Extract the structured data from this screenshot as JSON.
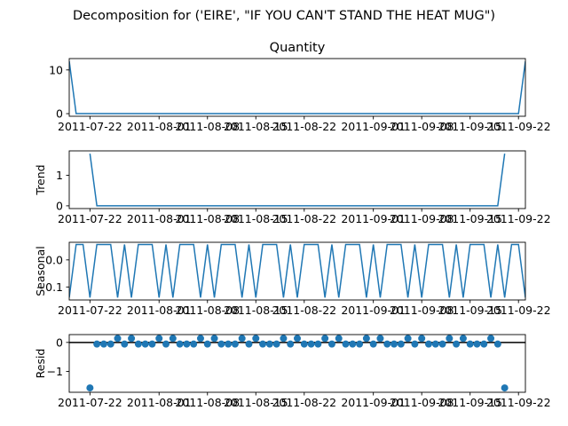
{
  "chart_data": {
    "type": "line",
    "suptitle": "Decomposition for ('EIRE', \"IF YOU CAN'T STAND THE HEAT MUG\")",
    "dates": [
      "2011-07-19",
      "2011-07-20",
      "2011-07-21",
      "2011-07-22",
      "2011-07-23",
      "2011-07-24",
      "2011-07-25",
      "2011-07-26",
      "2011-07-27",
      "2011-07-28",
      "2011-07-29",
      "2011-07-30",
      "2011-07-31",
      "2011-08-01",
      "2011-08-02",
      "2011-08-03",
      "2011-08-04",
      "2011-08-05",
      "2011-08-06",
      "2011-08-07",
      "2011-08-08",
      "2011-08-09",
      "2011-08-10",
      "2011-08-11",
      "2011-08-12",
      "2011-08-13",
      "2011-08-14",
      "2011-08-15",
      "2011-08-16",
      "2011-08-17",
      "2011-08-18",
      "2011-08-19",
      "2011-08-20",
      "2011-08-21",
      "2011-08-22",
      "2011-08-23",
      "2011-08-24",
      "2011-08-25",
      "2011-08-26",
      "2011-08-27",
      "2011-08-28",
      "2011-08-29",
      "2011-08-30",
      "2011-08-31",
      "2011-09-01",
      "2011-09-02",
      "2011-09-03",
      "2011-09-04",
      "2011-09-05",
      "2011-09-06",
      "2011-09-07",
      "2011-09-08",
      "2011-09-09",
      "2011-09-10",
      "2011-09-11",
      "2011-09-12",
      "2011-09-13",
      "2011-09-14",
      "2011-09-15",
      "2011-09-16",
      "2011-09-17",
      "2011-09-18",
      "2011-09-19",
      "2011-09-20",
      "2011-09-21",
      "2011-09-22",
      "2011-09-23"
    ],
    "x_tick_labels": [
      "2011-07-22",
      "2011-08-01",
      "2011-08-08",
      "2011-08-15",
      "2011-08-22",
      "2011-09-01",
      "2011-09-08",
      "2011-09-15",
      "2011-09-22"
    ],
    "panels": [
      {
        "name": "observed",
        "title": "Quantity",
        "ylabel": "",
        "kind": "line",
        "ylim": [
          -0.6,
          12.6
        ],
        "yticks": [
          0,
          10
        ],
        "values": [
          12,
          0,
          0,
          0,
          0,
          0,
          0,
          0,
          0,
          0,
          0,
          0,
          0,
          0,
          0,
          0,
          0,
          0,
          0,
          0,
          0,
          0,
          0,
          0,
          0,
          0,
          0,
          0,
          0,
          0,
          0,
          0,
          0,
          0,
          0,
          0,
          0,
          0,
          0,
          0,
          0,
          0,
          0,
          0,
          0,
          0,
          0,
          0,
          0,
          0,
          0,
          0,
          0,
          0,
          0,
          0,
          0,
          0,
          0,
          0,
          0,
          0,
          0,
          0,
          0,
          0,
          12
        ]
      },
      {
        "name": "trend",
        "title": "",
        "ylabel": "Trend",
        "kind": "line",
        "ylim": [
          -0.09,
          1.8
        ],
        "yticks": [
          0,
          1
        ],
        "values": [
          null,
          null,
          null,
          1.71,
          0,
          0,
          0,
          0,
          0,
          0,
          0,
          0,
          0,
          0,
          0,
          0,
          0,
          0,
          0,
          0,
          0,
          0,
          0,
          0,
          0,
          0,
          0,
          0,
          0,
          0,
          0,
          0,
          0,
          0,
          0,
          0,
          0,
          0,
          0,
          0,
          0,
          0,
          0,
          0,
          0,
          0,
          0,
          0,
          0,
          0,
          0,
          0,
          0,
          0,
          0,
          0,
          0,
          0,
          0,
          0,
          0,
          0,
          0,
          1.71,
          null,
          null,
          null
        ]
      },
      {
        "name": "seasonal",
        "title": "",
        "ylabel": "Seasonal",
        "kind": "line",
        "ylim": [
          -0.148,
          0.065
        ],
        "yticks": [
          0.0,
          -0.1
        ],
        "ytick_labels": [
          "0.0",
          "−0.1"
        ],
        "values": [
          -0.139,
          0.057,
          0.057,
          -0.139,
          0.057,
          0.057,
          0.057,
          -0.139,
          0.057,
          -0.139,
          0.057,
          0.057,
          0.057,
          -0.139,
          0.057,
          -0.139,
          0.057,
          0.057,
          0.057,
          -0.139,
          0.057,
          -0.139,
          0.057,
          0.057,
          0.057,
          -0.139,
          0.057,
          -0.139,
          0.057,
          0.057,
          0.057,
          -0.139,
          0.057,
          -0.139,
          0.057,
          0.057,
          0.057,
          -0.139,
          0.057,
          -0.139,
          0.057,
          0.057,
          0.057,
          -0.139,
          0.057,
          -0.139,
          0.057,
          0.057,
          0.057,
          -0.139,
          0.057,
          -0.139,
          0.057,
          0.057,
          0.057,
          -0.139,
          0.057,
          -0.139,
          0.057,
          0.057,
          0.057,
          -0.139,
          0.057,
          -0.139,
          0.057,
          0.057,
          -0.139
        ]
      },
      {
        "name": "resid",
        "title": "",
        "ylabel": "Resid",
        "kind": "scatter",
        "ylim": [
          -1.72,
          0.27
        ],
        "yticks": [
          0,
          -1
        ],
        "ytick_labels": [
          "0",
          "−1"
        ],
        "baseline": 0,
        "values": [
          null,
          null,
          null,
          -1.57,
          -0.057,
          -0.057,
          -0.057,
          0.139,
          -0.057,
          0.139,
          -0.057,
          -0.057,
          -0.057,
          0.139,
          -0.057,
          0.139,
          -0.057,
          -0.057,
          -0.057,
          0.139,
          -0.057,
          0.139,
          -0.057,
          -0.057,
          -0.057,
          0.139,
          -0.057,
          0.139,
          -0.057,
          -0.057,
          -0.057,
          0.139,
          -0.057,
          0.139,
          -0.057,
          -0.057,
          -0.057,
          0.139,
          -0.057,
          0.139,
          -0.057,
          -0.057,
          -0.057,
          0.139,
          -0.057,
          0.139,
          -0.057,
          -0.057,
          -0.057,
          0.139,
          -0.057,
          0.139,
          -0.057,
          -0.057,
          -0.057,
          0.139,
          -0.057,
          0.139,
          -0.057,
          -0.057,
          -0.057,
          0.139,
          -0.057,
          -1.57,
          null,
          null,
          null
        ]
      }
    ],
    "grid": false,
    "colors": {
      "series": "#1f77b4",
      "baseline": "#000000"
    }
  }
}
